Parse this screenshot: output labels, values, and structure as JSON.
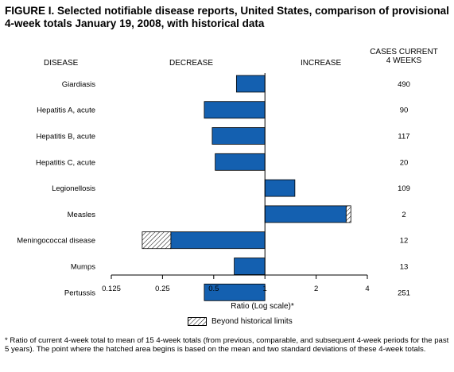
{
  "title_line1": "FIGURE I. Selected notifiable disease reports, United States, comparison of provisional",
  "title_line2": "4-week totals January 19, 2008, with historical data",
  "headers": {
    "disease": "DISEASE",
    "decrease": "DECREASE",
    "increase": "INCREASE",
    "cases_line1": "CASES CURRENT",
    "cases_line2": "4 WEEKS"
  },
  "axis_label": "Ratio (Log scale)*",
  "legend_label": "Beyond historical limits",
  "footnote": "* Ratio of current 4-week total to mean of 15 4-week totals (from previous, comparable, and subsequent 4-week periods for the past 5 years). The point where the hatched area begins is based on the mean and two standard deviations of these 4-week totals.",
  "colors": {
    "bar": "#1460b0",
    "hatch_bg": "#ffffff",
    "hatch_line": "#000000"
  },
  "chart_data": {
    "type": "bar",
    "orientation": "horizontal",
    "scale": "log2",
    "baseline": 1,
    "xlim": [
      0.125,
      4
    ],
    "ticks": [
      "0.125",
      "0.25",
      "0.5",
      "1",
      "2",
      "4"
    ],
    "tick_values": [
      0.125,
      0.25,
      0.5,
      1,
      2,
      4
    ],
    "categories": [
      "Giardiasis",
      "Hepatitis A, acute",
      "Hepatitis B, acute",
      "Hepatitis C, acute",
      "Legionellosis",
      "Measles",
      "Meningococcal disease",
      "Mumps",
      "Pertussis"
    ],
    "values": [
      0.68,
      0.44,
      0.49,
      0.51,
      1.5,
      3.2,
      0.19,
      0.66,
      0.44
    ],
    "beyond_limits_from": [
      null,
      null,
      null,
      null,
      null,
      3.0,
      0.28,
      null,
      null
    ],
    "cases_current_4_weeks": [
      "490",
      "90",
      "117",
      "20",
      "109",
      "2",
      "12",
      "13",
      "251"
    ]
  }
}
